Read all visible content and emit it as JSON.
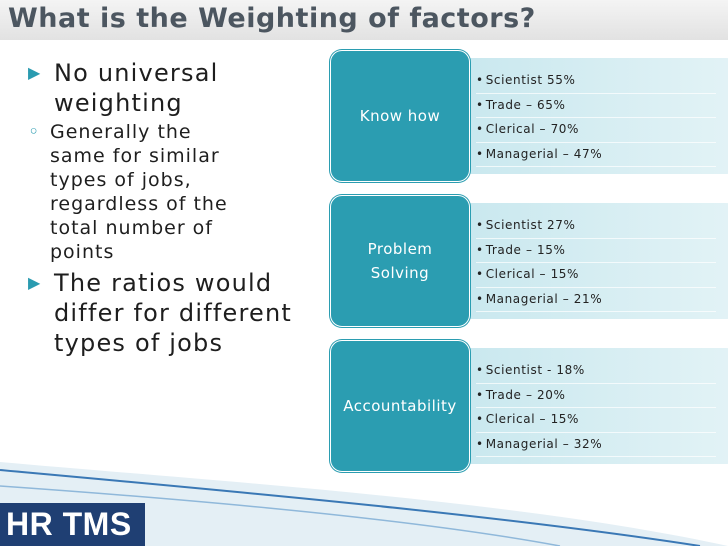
{
  "title": "What is the Weighting of factors?",
  "bullets": [
    {
      "text": "No universal weighting",
      "sub": [
        "Generally the same for similar types of jobs, regardless of the total number of points"
      ]
    },
    {
      "text": "The ratios would differ for different types of jobs"
    }
  ],
  "factors": [
    {
      "label": "Know how",
      "items": [
        "Scientist 55%",
        "Trade – 65%",
        "Clerical – 70%",
        "Managerial – 47%"
      ]
    },
    {
      "label": "Problem Solving",
      "items": [
        "Scientist 27%",
        "Trade – 15%",
        "Clerical – 15%",
        "Managerial – 21%"
      ]
    },
    {
      "label": "Accountability",
      "items": [
        "Scientist - 18%",
        "Trade – 20%",
        "Clerical – 15%",
        "Managerial – 32%"
      ]
    }
  ],
  "logo": "HR TMS"
}
